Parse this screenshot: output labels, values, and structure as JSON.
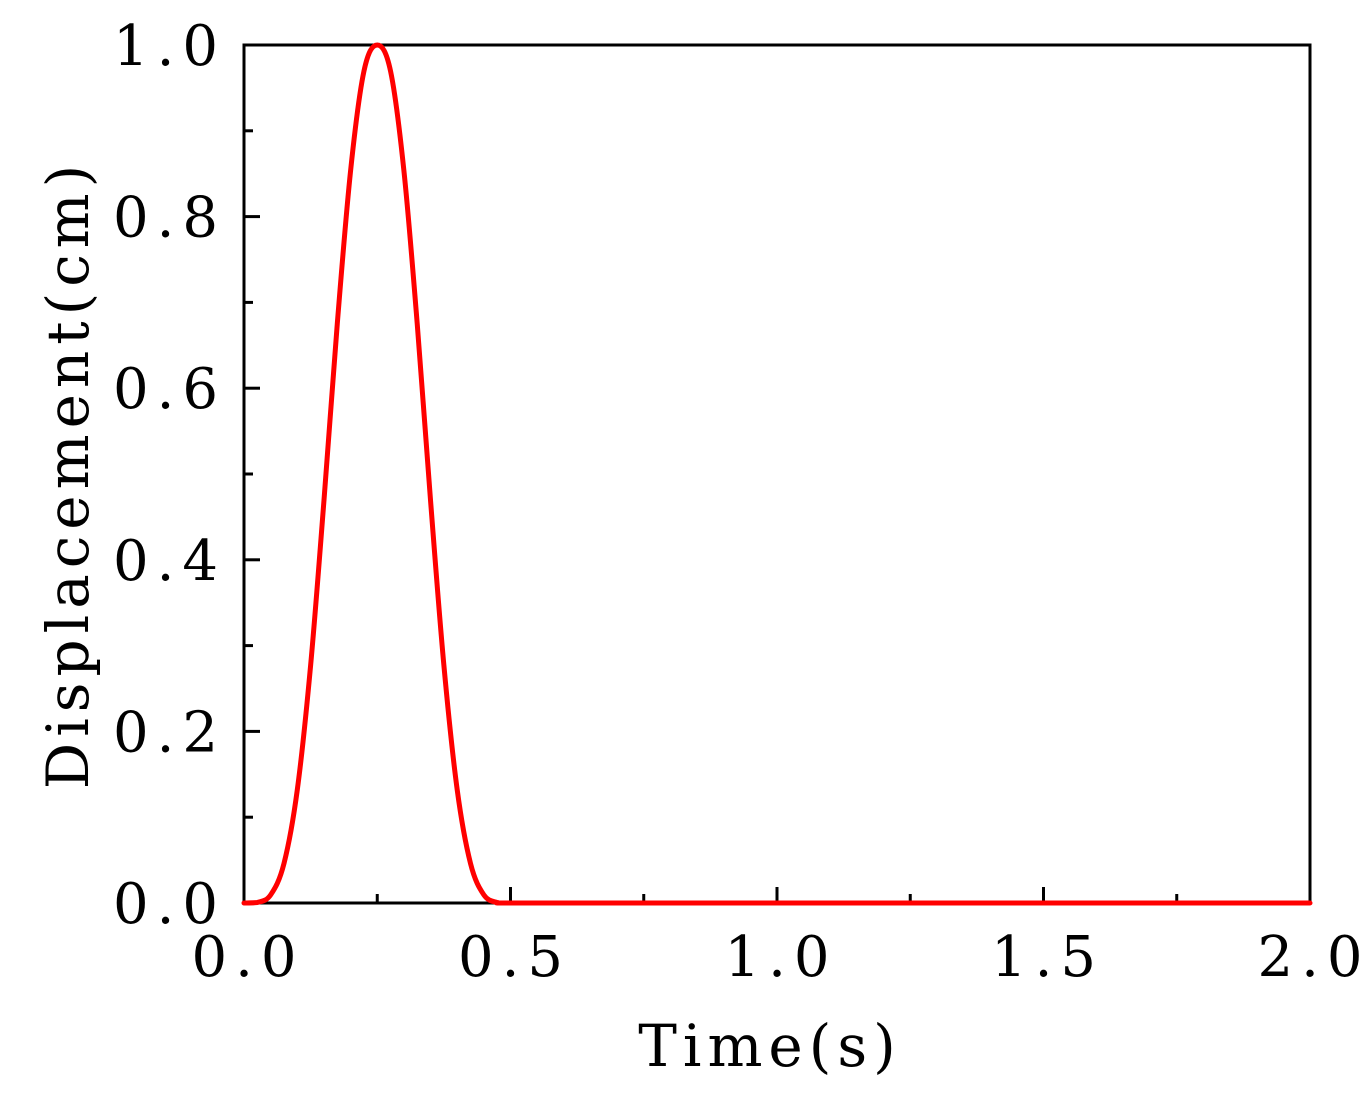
{
  "chart_data": {
    "type": "line",
    "title": "",
    "xlabel": "Time(s)",
    "ylabel": "Displacement(cm)",
    "xlim": [
      0.0,
      2.0
    ],
    "ylim": [
      0.0,
      1.0
    ],
    "x_ticks": [
      "0.0",
      "0.5",
      "1.0",
      "1.5",
      "2.0"
    ],
    "y_ticks": [
      "0.0",
      "0.2",
      "0.4",
      "0.6",
      "0.8",
      "1.0"
    ],
    "x_tick_values": [
      0.0,
      0.5,
      1.0,
      1.5,
      2.0
    ],
    "y_tick_values": [
      0.0,
      0.2,
      0.4,
      0.6,
      0.8,
      1.0
    ],
    "x_minor_tick_values": [
      0.25,
      0.75,
      1.25,
      1.75
    ],
    "y_minor_tick_values": [
      0.1,
      0.3,
      0.5,
      0.7,
      0.9
    ],
    "grid": false,
    "series": [
      {
        "color": "#ff0000",
        "x": [
          0.0,
          0.025,
          0.05,
          0.075,
          0.1,
          0.125,
          0.15,
          0.175,
          0.2,
          0.225,
          0.25,
          0.275,
          0.3,
          0.325,
          0.35,
          0.375,
          0.4,
          0.425,
          0.45,
          0.475,
          0.5,
          0.75,
          1.0,
          1.25,
          1.5,
          1.75,
          2.0
        ],
        "y": [
          0.0,
          0.0006,
          0.0095,
          0.0461,
          0.132,
          0.2771,
          0.4689,
          0.6749,
          0.8536,
          0.9694,
          1.0,
          0.9694,
          0.8536,
          0.6749,
          0.4689,
          0.2771,
          0.132,
          0.0461,
          0.0095,
          0.0006,
          0.0,
          0.0,
          0.0,
          0.0,
          0.0,
          0.0,
          0.0
        ]
      }
    ]
  }
}
